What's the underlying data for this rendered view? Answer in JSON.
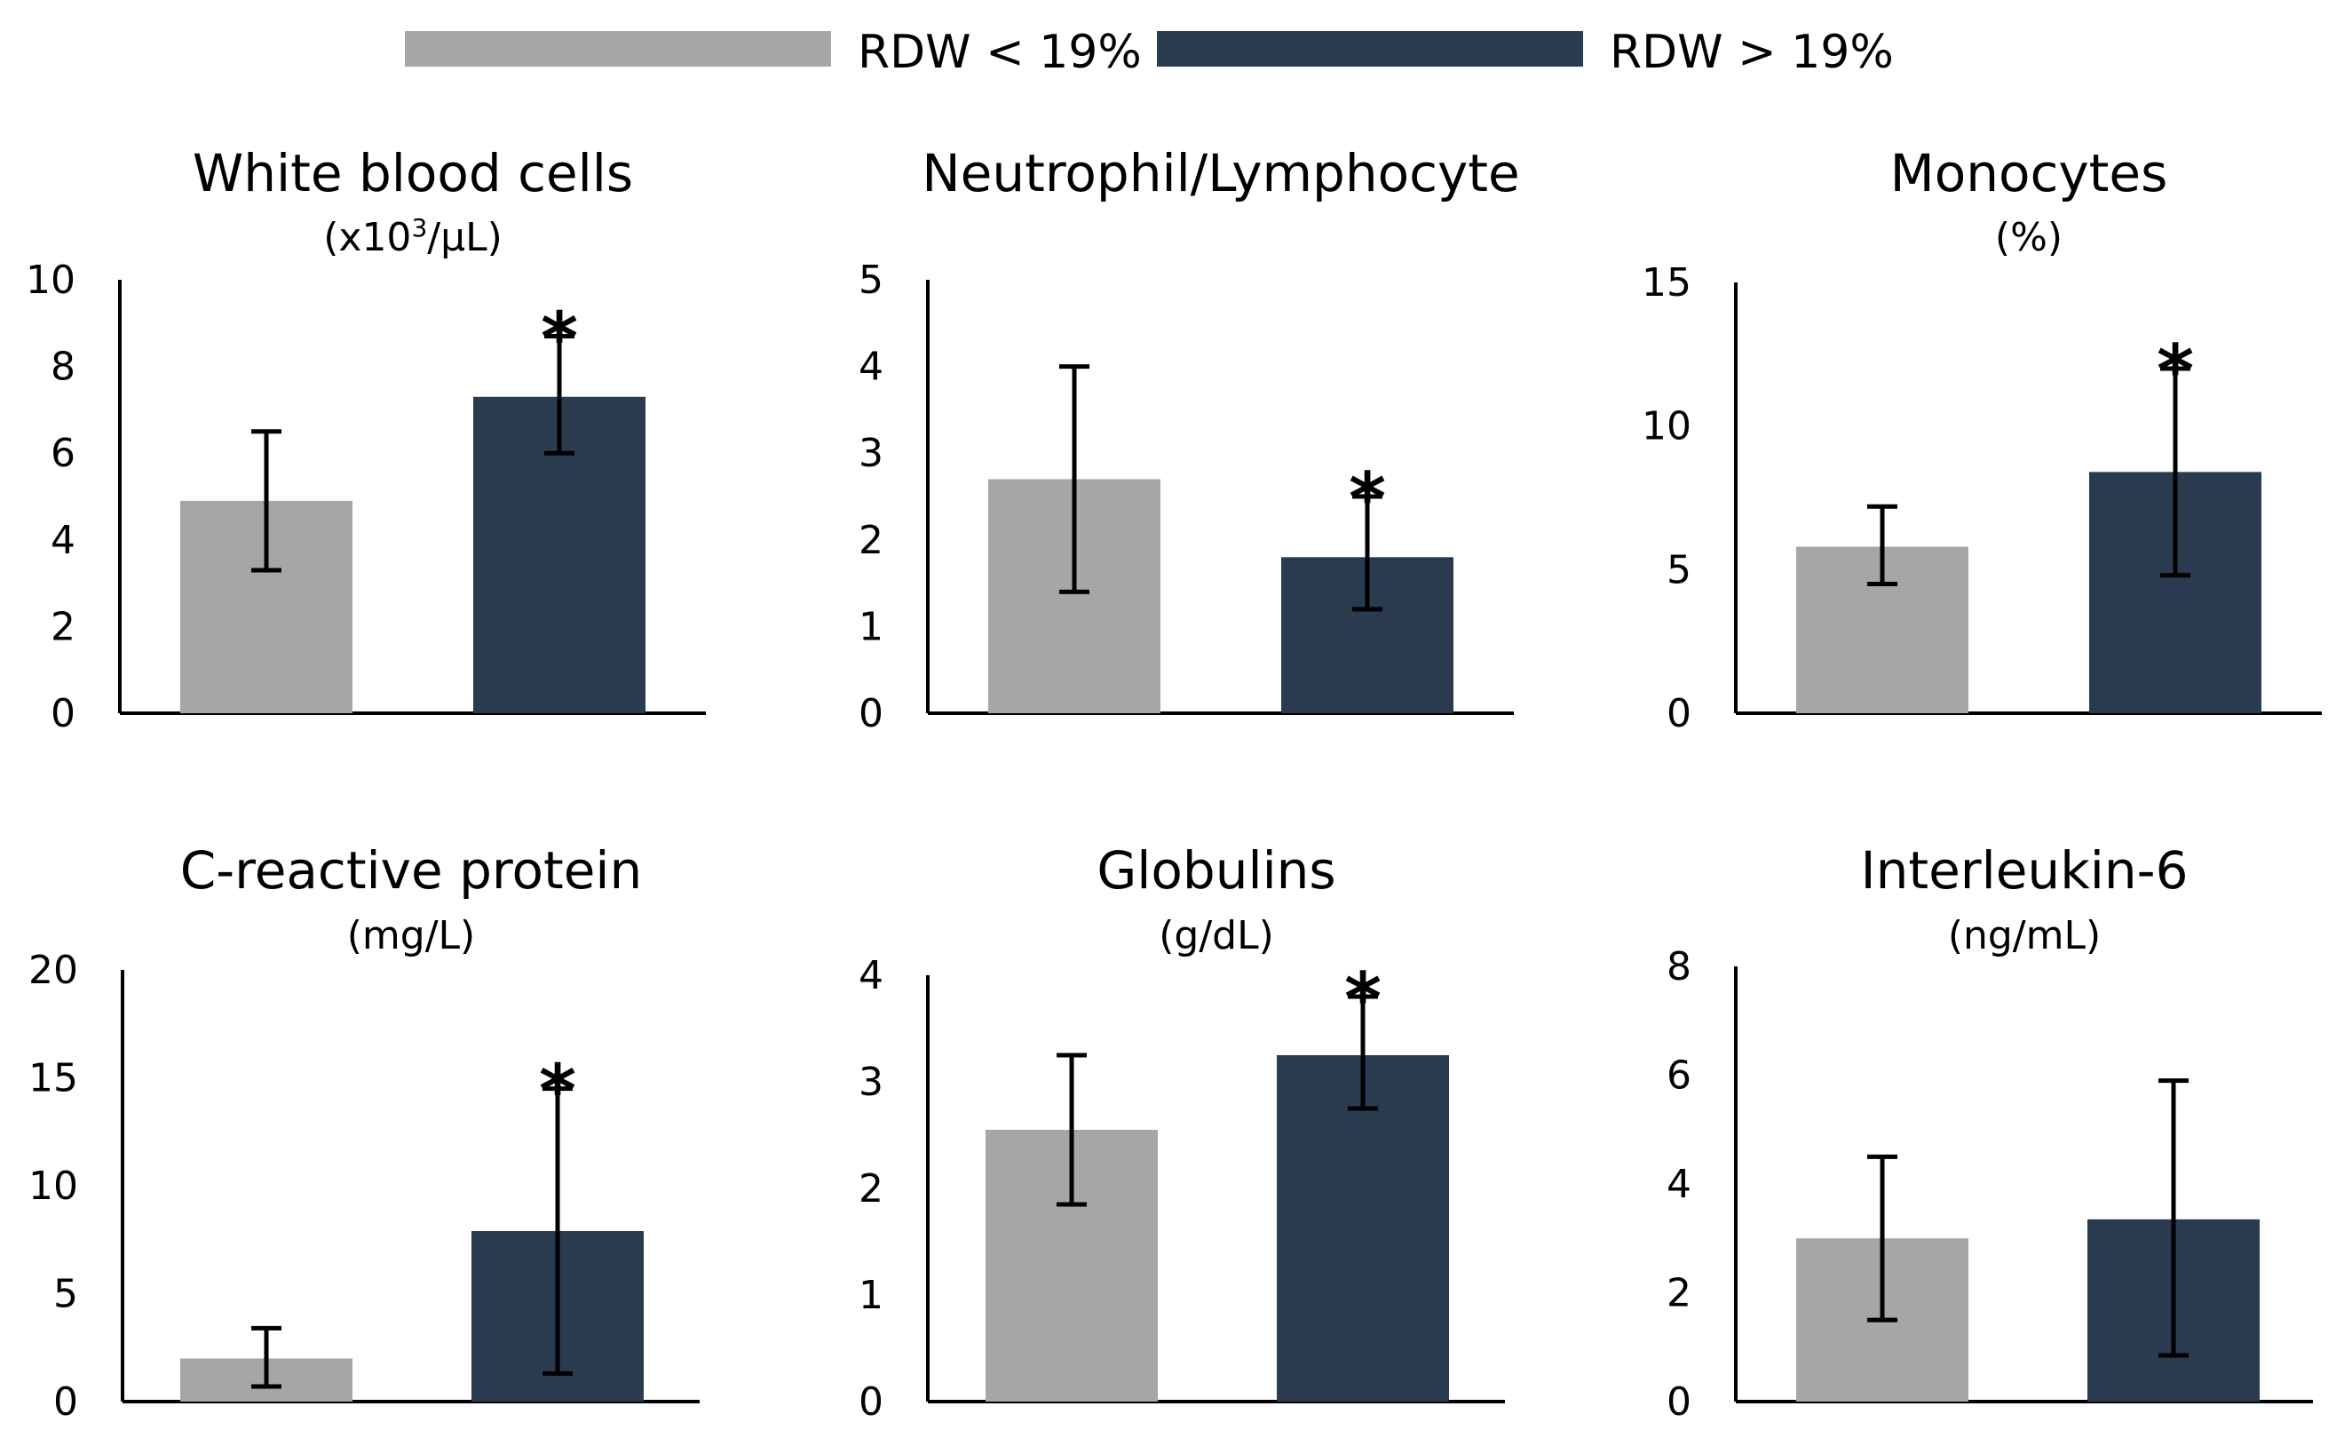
{
  "legend": [
    {
      "name": "RDW < 19%",
      "color": "#a6a6a6"
    },
    {
      "name": "RDW > 19%",
      "color": "#2a3a4f"
    }
  ],
  "significance_marker": "*",
  "chart_data": [
    {
      "type": "bar",
      "title": "White blood cells",
      "unit_prefix": "(x10",
      "unit_sup": "3",
      "unit_suffix": "/µL)",
      "ylim": [
        0,
        10
      ],
      "yticks": [
        0,
        2,
        4,
        6,
        8,
        10
      ],
      "series": [
        {
          "name": "RDW < 19%",
          "value": 4.9,
          "err_low": 3.3,
          "err_high": 6.5
        },
        {
          "name": "RDW > 19%",
          "value": 7.3,
          "err_low": 6.0,
          "err_high": 8.7
        }
      ],
      "significant": [
        false,
        true
      ]
    },
    {
      "type": "bar",
      "title": "Neutrophil/Lymphocyte",
      "unit": "",
      "ylim": [
        0,
        5
      ],
      "yticks": [
        0,
        1,
        2,
        3,
        4,
        5
      ],
      "series": [
        {
          "name": "RDW < 19%",
          "value": 2.7,
          "err_low": 1.4,
          "err_high": 4.0
        },
        {
          "name": "RDW > 19%",
          "value": 1.8,
          "err_low": 1.2,
          "err_high": 2.5
        }
      ],
      "significant": [
        false,
        true
      ]
    },
    {
      "type": "bar",
      "title": "Monocytes",
      "unit": "(%)",
      "ylim": [
        0,
        15
      ],
      "yticks": [
        0,
        5,
        10,
        15
      ],
      "series": [
        {
          "name": "RDW < 19%",
          "value": 5.8,
          "err_low": 4.5,
          "err_high": 7.2
        },
        {
          "name": "RDW > 19%",
          "value": 8.4,
          "err_low": 4.8,
          "err_high": 12.0
        }
      ],
      "significant": [
        false,
        true
      ]
    },
    {
      "type": "bar",
      "title": "C-reactive protein",
      "unit": "(mg/L)",
      "ylim": [
        0,
        20
      ],
      "yticks": [
        0,
        5,
        10,
        15,
        20
      ],
      "series": [
        {
          "name": "RDW < 19%",
          "value": 2.0,
          "err_low": 0.7,
          "err_high": 3.4
        },
        {
          "name": "RDW > 19%",
          "value": 7.9,
          "err_low": 1.3,
          "err_high": 14.5
        }
      ],
      "significant": [
        false,
        true
      ]
    },
    {
      "type": "bar",
      "title": "Globulins",
      "unit": "(g/dL)",
      "ylim": [
        0,
        4
      ],
      "yticks": [
        0,
        1,
        2,
        3,
        4
      ],
      "series": [
        {
          "name": "RDW < 19%",
          "value": 2.55,
          "err_low": 1.85,
          "err_high": 3.25
        },
        {
          "name": "RDW > 19%",
          "value": 3.25,
          "err_low": 2.75,
          "err_high": 3.8
        }
      ],
      "significant": [
        false,
        true
      ]
    },
    {
      "type": "bar",
      "title": "Interleukin-6",
      "unit": "(ng/mL)",
      "ylim": [
        0,
        8
      ],
      "yticks": [
        0,
        2,
        4,
        6,
        8
      ],
      "series": [
        {
          "name": "RDW < 19%",
          "value": 3.0,
          "err_low": 1.5,
          "err_high": 4.5
        },
        {
          "name": "RDW > 19%",
          "value": 3.35,
          "err_low": 0.85,
          "err_high": 5.9
        }
      ],
      "significant": [
        false,
        false
      ]
    }
  ]
}
